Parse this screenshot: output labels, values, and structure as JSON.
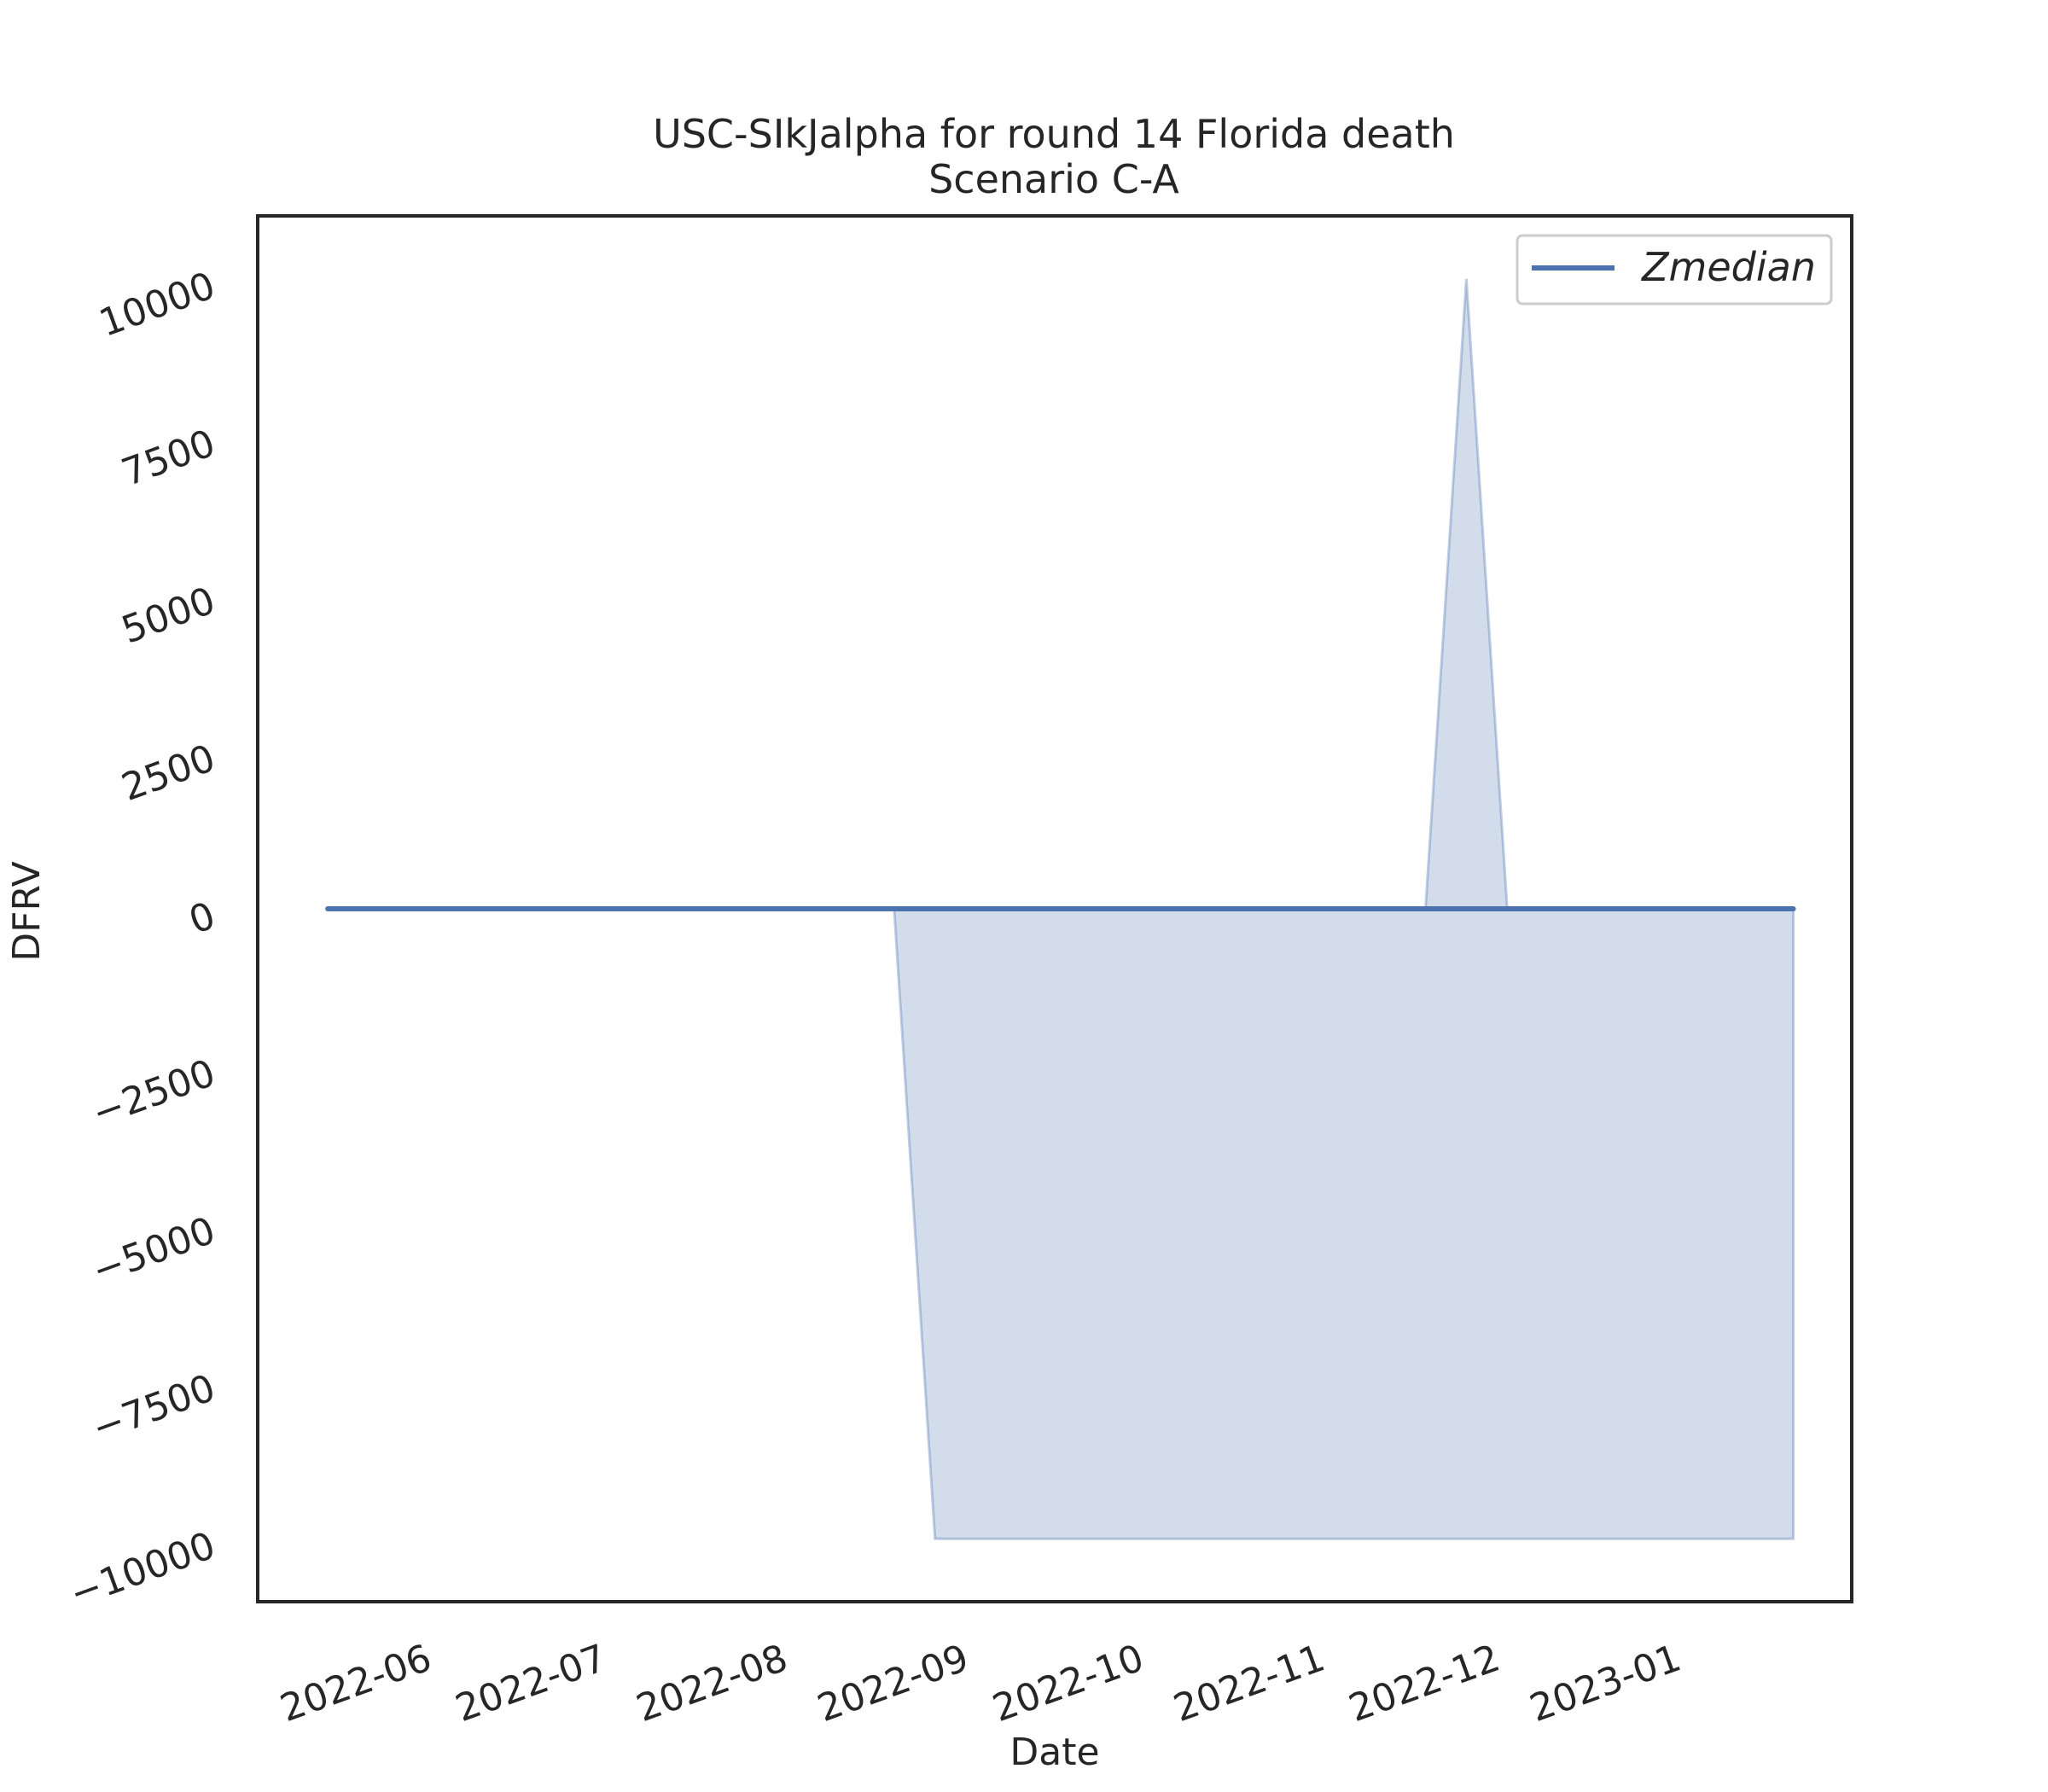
{
  "chart_data": {
    "type": "line",
    "title": "USC-SIkJalpha for round 14 Florida death",
    "subtitle": "Scenario C-A",
    "xlabel": "Date",
    "ylabel": "DFRV",
    "x_type": "date",
    "xlim": [
      "2022-05-03",
      "2023-01-31"
    ],
    "ylim": [
      -11000,
      11000
    ],
    "x_ticks": [
      "2022-06-01",
      "2022-07-01",
      "2022-08-01",
      "2022-09-01",
      "2022-10-01",
      "2022-11-01",
      "2022-12-01",
      "2023-01-01"
    ],
    "x_tick_labels": [
      "2022-06",
      "2022-07",
      "2022-08",
      "2022-09",
      "2022-10",
      "2022-11",
      "2022-12",
      "2023-01"
    ],
    "y_ticks": [
      10000,
      7500,
      5000,
      2500,
      0,
      -2500,
      -5000,
      -7500,
      -10000
    ],
    "y_tick_labels": [
      "10000",
      "7500",
      "5000",
      "2500",
      "0",
      "−2500",
      "−5000",
      "−7500",
      "−10000"
    ],
    "grid": false,
    "legend_position": "top-right",
    "series": [
      {
        "name": "Zmedian",
        "color": "#4c72b0",
        "x": [
          "2022-05-15",
          "2023-01-21"
        ],
        "y": [
          0,
          0
        ]
      }
    ],
    "bands": [
      {
        "color": "#4c72b0",
        "opacity": 0.25,
        "x": [
          "2022-05-15",
          "2022-08-20",
          "2022-08-27",
          "2022-11-19",
          "2022-11-26",
          "2022-12-03",
          "2023-01-21"
        ],
        "upper": [
          0,
          0,
          0,
          0,
          10000,
          0,
          0
        ],
        "lower": [
          0,
          0,
          -10000,
          -10000,
          -10000,
          -10000,
          -10000
        ]
      }
    ]
  }
}
